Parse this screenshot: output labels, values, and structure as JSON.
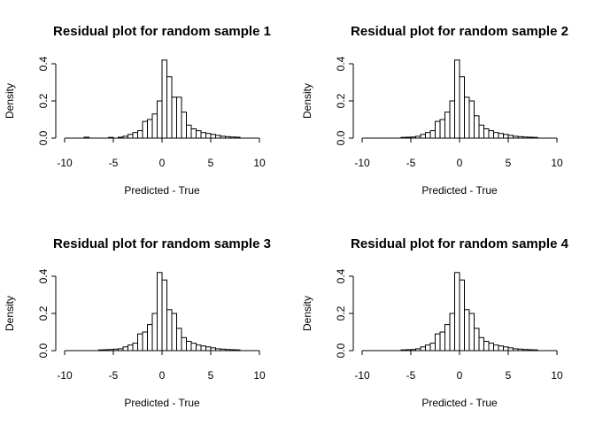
{
  "chart_data": [
    {
      "type": "histogram",
      "title": "Residual plot for random sample  1",
      "xlabel": "Predicted - True",
      "ylabel": "Density",
      "xlim": [
        -10,
        10
      ],
      "ylim": [
        0,
        0.4
      ],
      "xticks": [
        -10,
        -5,
        0,
        5,
        10
      ],
      "yticks": [
        0.0,
        0.2,
        0.4
      ],
      "xtick_labels": [
        "-10",
        "-5",
        "0",
        "5",
        "10"
      ],
      "ytick_labels": [
        "0.0",
        "0.2",
        "0.4"
      ],
      "grid": false,
      "bin_width": 0.5,
      "bin_start": -8.0,
      "values": [
        0.005,
        0.0,
        0.0,
        0.0,
        0.0,
        0.004,
        0.0,
        0.005,
        0.01,
        0.02,
        0.03,
        0.04,
        0.09,
        0.1,
        0.13,
        0.2,
        0.42,
        0.33,
        0.22,
        0.22,
        0.14,
        0.07,
        0.05,
        0.04,
        0.03,
        0.025,
        0.02,
        0.015,
        0.01,
        0.008,
        0.006,
        0.005
      ]
    },
    {
      "type": "histogram",
      "title": "Residual plot for random sample  2",
      "xlabel": "Predicted - True",
      "ylabel": "Density",
      "xlim": [
        -10,
        10
      ],
      "ylim": [
        0,
        0.4
      ],
      "xticks": [
        -10,
        -5,
        0,
        5,
        10
      ],
      "yticks": [
        0.0,
        0.2,
        0.4
      ],
      "xtick_labels": [
        "-10",
        "-5",
        "0",
        "5",
        "10"
      ],
      "ytick_labels": [
        "0.0",
        "0.2",
        "0.4"
      ],
      "grid": false,
      "bin_width": 0.5,
      "bin_start": -6.0,
      "values": [
        0.004,
        0.005,
        0.006,
        0.01,
        0.02,
        0.03,
        0.04,
        0.09,
        0.1,
        0.14,
        0.2,
        0.42,
        0.33,
        0.22,
        0.2,
        0.12,
        0.07,
        0.05,
        0.04,
        0.03,
        0.025,
        0.02,
        0.015,
        0.01,
        0.008,
        0.006,
        0.005,
        0.004
      ]
    },
    {
      "type": "histogram",
      "title": "Residual plot for random sample  3",
      "xlabel": "Predicted - True",
      "ylabel": "Density",
      "xlim": [
        -10,
        10
      ],
      "ylim": [
        0,
        0.4
      ],
      "xticks": [
        -10,
        -5,
        0,
        5,
        10
      ],
      "yticks": [
        0.0,
        0.2,
        0.4
      ],
      "xtick_labels": [
        "-10",
        "-5",
        "0",
        "5",
        "10"
      ],
      "ytick_labels": [
        "0.0",
        "0.2",
        "0.4"
      ],
      "grid": false,
      "bin_width": 0.5,
      "bin_start": -6.5,
      "values": [
        0.004,
        0.005,
        0.006,
        0.008,
        0.01,
        0.02,
        0.03,
        0.04,
        0.09,
        0.1,
        0.14,
        0.2,
        0.42,
        0.38,
        0.22,
        0.2,
        0.12,
        0.07,
        0.05,
        0.04,
        0.03,
        0.025,
        0.02,
        0.015,
        0.01,
        0.008,
        0.006,
        0.005,
        0.004
      ]
    },
    {
      "type": "histogram",
      "title": "Residual plot for random sample  4",
      "xlabel": "Predicted - True",
      "ylabel": "Density",
      "xlim": [
        -10,
        10
      ],
      "ylim": [
        0,
        0.4
      ],
      "xticks": [
        -10,
        -5,
        0,
        5,
        10
      ],
      "yticks": [
        0.0,
        0.2,
        0.4
      ],
      "xtick_labels": [
        "-10",
        "-5",
        "0",
        "5",
        "10"
      ],
      "ytick_labels": [
        "0.0",
        "0.2",
        "0.4"
      ],
      "grid": false,
      "bin_width": 0.5,
      "bin_start": -6.0,
      "values": [
        0.004,
        0.005,
        0.006,
        0.01,
        0.02,
        0.03,
        0.04,
        0.09,
        0.1,
        0.14,
        0.2,
        0.42,
        0.38,
        0.22,
        0.2,
        0.12,
        0.07,
        0.05,
        0.04,
        0.03,
        0.025,
        0.02,
        0.015,
        0.01,
        0.008,
        0.006,
        0.005,
        0.004
      ]
    }
  ]
}
